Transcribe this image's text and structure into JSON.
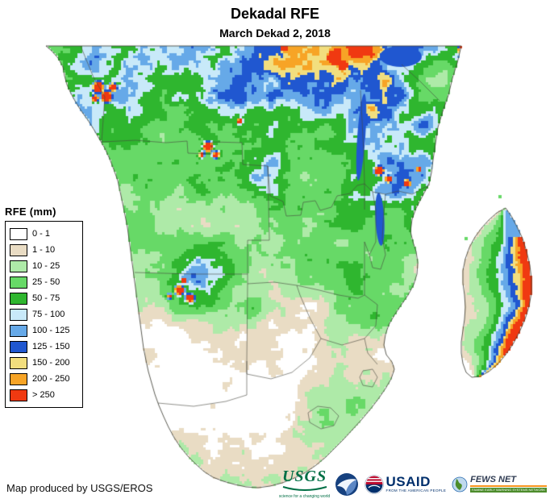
{
  "header": {
    "title": "Dekadal RFE",
    "subtitle": "March Dekad 2, 2018"
  },
  "legend": {
    "title": "RFE (mm)",
    "entries": [
      {
        "label": "0 - 1",
        "color": "#FFFFFF"
      },
      {
        "label": "1 - 10",
        "color": "#E9DCC4"
      },
      {
        "label": "10 - 25",
        "color": "#AEEAA8"
      },
      {
        "label": "25 - 50",
        "color": "#67D967"
      },
      {
        "label": "50 - 75",
        "color": "#2FB62F"
      },
      {
        "label": "75 - 100",
        "color": "#C8E9F9"
      },
      {
        "label": "100 - 125",
        "color": "#66A9E8"
      },
      {
        "label": "125 - 150",
        "color": "#2057D0"
      },
      {
        "label": "150 - 200",
        "color": "#F2DE7E"
      },
      {
        "label": "200 - 250",
        "color": "#F7A426"
      },
      {
        "label": "> 250",
        "color": "#F03911"
      }
    ]
  },
  "footer": {
    "credit": "Map produced by USGS/EROS",
    "logos": {
      "usgs": {
        "name": "USGS",
        "tagline": "science for a changing world",
        "color": "#006F45"
      },
      "noaa": {
        "color": "#16417F"
      },
      "usaid": {
        "name": "USAID",
        "tagline": "FROM THE AMERICAN PEOPLE",
        "color": "#002F6C"
      },
      "fewsnet": {
        "name": "FEWS NET",
        "tagline": "FAMINE EARLY WARNING SYSTEMS NETWORK",
        "color": "#4C8C2B"
      }
    }
  }
}
